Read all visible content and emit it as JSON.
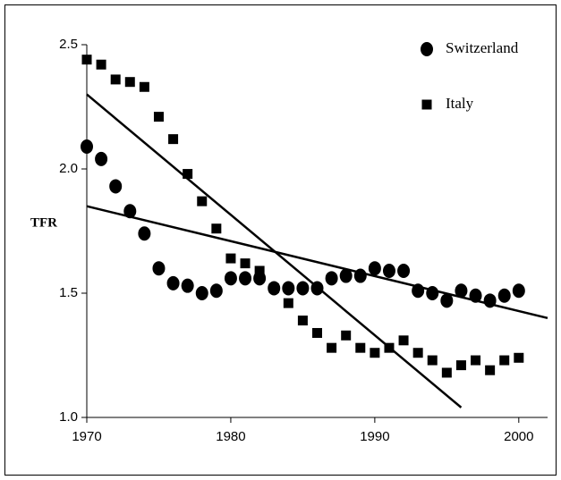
{
  "chart_data": {
    "type": "scatter",
    "ylabel": "TFR",
    "xlim": [
      1970,
      2002
    ],
    "xticks": [
      1970,
      1980,
      1990,
      2000
    ],
    "ylim": [
      1.0,
      2.5
    ],
    "yticks": [
      {
        "value": 1.0,
        "label": "1.0"
      },
      1.5,
      {
        "value": 2.0,
        "label": "2.0"
      },
      2.5
    ],
    "legend": "upper right",
    "series": [
      {
        "name": "Switzerland",
        "color": "#000000",
        "marker": "circle",
        "x": [
          1970,
          1971,
          1972,
          1973,
          1974,
          1975,
          1976,
          1977,
          1978,
          1979,
          1980,
          1981,
          1982,
          1983,
          1984,
          1985,
          1986,
          1987,
          1988,
          1989,
          1990,
          1991,
          1992,
          1993,
          1994,
          1995,
          1996,
          1997,
          1998,
          1999,
          2000
        ],
        "values": [
          2.09,
          2.04,
          1.93,
          1.83,
          1.74,
          1.6,
          1.54,
          1.53,
          1.5,
          1.51,
          1.56,
          1.56,
          1.56,
          1.52,
          1.52,
          1.52,
          1.52,
          1.56,
          1.57,
          1.57,
          1.6,
          1.59,
          1.59,
          1.51,
          1.5,
          1.47,
          1.51,
          1.49,
          1.47,
          1.49,
          1.51
        ],
        "trend": {
          "x": [
            1970,
            2002
          ],
          "values": [
            1.85,
            1.4
          ]
        }
      },
      {
        "name": "Italy",
        "color": "#000000",
        "marker": "square",
        "x": [
          1970,
          1971,
          1972,
          1973,
          1974,
          1975,
          1976,
          1977,
          1978,
          1979,
          1980,
          1981,
          1982,
          1983,
          1984,
          1985,
          1986,
          1987,
          1988,
          1989,
          1990,
          1991,
          1992,
          1993,
          1994,
          1995,
          1996,
          1997,
          1998,
          1999,
          2000
        ],
        "values": [
          2.44,
          2.42,
          2.36,
          2.35,
          2.33,
          2.21,
          2.12,
          1.98,
          1.87,
          1.76,
          1.64,
          1.62,
          1.59,
          1.52,
          1.46,
          1.39,
          1.34,
          1.28,
          1.33,
          1.28,
          1.26,
          1.28,
          1.31,
          1.26,
          1.23,
          1.18,
          1.21,
          1.23,
          1.19,
          1.23,
          1.24
        ],
        "trend": {
          "x": [
            1970,
            1996
          ],
          "values": [
            2.3,
            1.04
          ]
        }
      }
    ]
  }
}
